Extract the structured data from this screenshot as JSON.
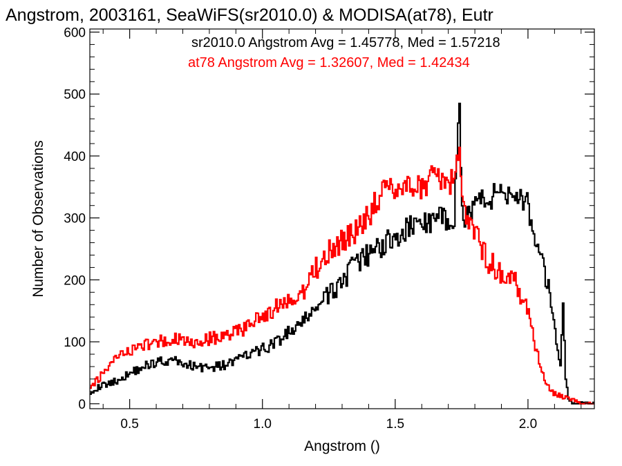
{
  "chart_data": {
    "type": "histogram-step",
    "title": "Angstrom, 2003161, SeaWiFS(sr2010.0) & MODISA(at78), Eutr",
    "xlabel": "Angstrom ()",
    "ylabel": "Number of Observations",
    "xlim": [
      0.35,
      2.25
    ],
    "ylim": [
      -8,
      605
    ],
    "xticks": [
      0.5,
      1.0,
      1.5,
      2.0
    ],
    "xtick_labels": [
      "0.5",
      "1.0",
      "1.5",
      "2.0"
    ],
    "yticks": [
      0,
      100,
      200,
      300,
      400,
      500,
      600
    ],
    "ytick_labels": [
      "0",
      "100",
      "200",
      "300",
      "400",
      "500",
      "600"
    ],
    "grid": false,
    "legend": [
      {
        "text": "sr2010.0 Angstrom Avg = 1.45778, Med = 1.57218",
        "color": "#000000"
      },
      {
        "text": "at78 Angstrom Avg = 1.32607, Med = 1.42434",
        "color": "#ff0000"
      }
    ],
    "series": [
      {
        "color": "#000000",
        "points": [
          [
            0.35,
            20
          ],
          [
            0.4,
            30
          ],
          [
            0.45,
            37
          ],
          [
            0.5,
            50
          ],
          [
            0.55,
            60
          ],
          [
            0.6,
            68
          ],
          [
            0.65,
            70
          ],
          [
            0.7,
            65
          ],
          [
            0.75,
            60
          ],
          [
            0.8,
            58
          ],
          [
            0.85,
            62
          ],
          [
            0.9,
            70
          ],
          [
            0.95,
            80
          ],
          [
            1.0,
            88
          ],
          [
            1.05,
            100
          ],
          [
            1.1,
            115
          ],
          [
            1.15,
            130
          ],
          [
            1.2,
            158
          ],
          [
            1.25,
            175
          ],
          [
            1.3,
            200
          ],
          [
            1.35,
            225
          ],
          [
            1.4,
            240
          ],
          [
            1.45,
            258
          ],
          [
            1.5,
            268
          ],
          [
            1.55,
            285
          ],
          [
            1.6,
            292
          ],
          [
            1.65,
            295
          ],
          [
            1.7,
            302
          ],
          [
            1.72,
            300
          ],
          [
            1.74,
            488
          ],
          [
            1.75,
            300
          ],
          [
            1.8,
            325
          ],
          [
            1.85,
            330
          ],
          [
            1.9,
            345
          ],
          [
            1.95,
            340
          ],
          [
            2.0,
            320
          ],
          [
            2.02,
            255
          ],
          [
            2.05,
            225
          ],
          [
            2.08,
            180
          ],
          [
            2.1,
            115
          ],
          [
            2.12,
            60
          ],
          [
            2.13,
            150
          ],
          [
            2.14,
            40
          ],
          [
            2.15,
            10
          ],
          [
            2.17,
            0
          ],
          [
            2.25,
            0
          ]
        ]
      },
      {
        "color": "#ff0000",
        "points": [
          [
            0.35,
            25
          ],
          [
            0.4,
            50
          ],
          [
            0.45,
            75
          ],
          [
            0.5,
            85
          ],
          [
            0.55,
            95
          ],
          [
            0.6,
            100
          ],
          [
            0.65,
            103
          ],
          [
            0.7,
            105
          ],
          [
            0.75,
            100
          ],
          [
            0.8,
            105
          ],
          [
            0.85,
            110
          ],
          [
            0.9,
            115
          ],
          [
            0.95,
            128
          ],
          [
            1.0,
            140
          ],
          [
            1.05,
            155
          ],
          [
            1.1,
            165
          ],
          [
            1.15,
            178
          ],
          [
            1.2,
            220
          ],
          [
            1.25,
            245
          ],
          [
            1.3,
            265
          ],
          [
            1.35,
            278
          ],
          [
            1.4,
            305
          ],
          [
            1.45,
            345
          ],
          [
            1.5,
            350
          ],
          [
            1.55,
            355
          ],
          [
            1.6,
            345
          ],
          [
            1.65,
            375
          ],
          [
            1.7,
            345
          ],
          [
            1.74,
            410
          ],
          [
            1.75,
            315
          ],
          [
            1.8,
            275
          ],
          [
            1.85,
            230
          ],
          [
            1.9,
            210
          ],
          [
            1.95,
            195
          ],
          [
            2.0,
            150
          ],
          [
            2.03,
            85
          ],
          [
            2.05,
            55
          ],
          [
            2.08,
            20
          ],
          [
            2.12,
            12
          ],
          [
            2.15,
            8
          ],
          [
            2.2,
            0
          ],
          [
            2.25,
            0
          ]
        ]
      }
    ]
  }
}
